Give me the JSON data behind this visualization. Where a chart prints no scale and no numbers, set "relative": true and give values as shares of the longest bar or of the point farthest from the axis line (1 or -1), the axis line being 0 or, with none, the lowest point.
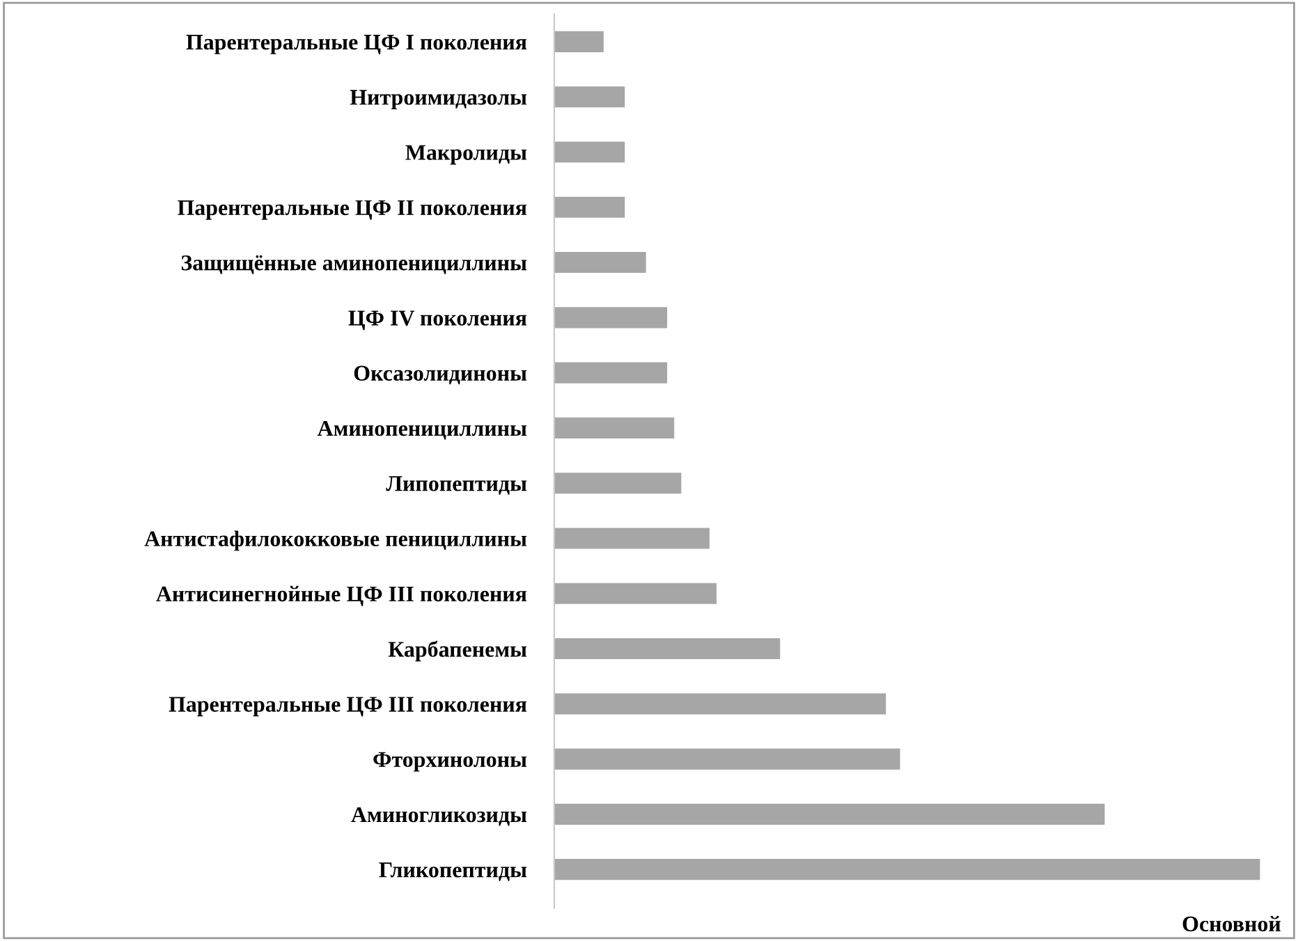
{
  "chart_data": {
    "type": "bar",
    "orientation": "horizontal",
    "relative": true,
    "categories": [
      "Парентеральные ЦФ I поколения",
      "Нитроимидазолы",
      "Макролиды",
      "Парентеральные ЦФ II поколения",
      "Защищённые аминопенициллины",
      "ЦФ IV поколения",
      "Оксазолидиноны",
      "Аминопенициллины",
      "Липопептиды",
      "Антистафилококковые пенициллины",
      "Антисинегнойные ЦФ III поколения",
      "Карбапенемы",
      "Парентеральные ЦФ III поколения",
      "Фторхинолоны",
      "Аминогликозиды",
      "Гликопептиды"
    ],
    "values": [
      0.07,
      0.1,
      0.1,
      0.1,
      0.13,
      0.16,
      0.16,
      0.17,
      0.18,
      0.22,
      0.23,
      0.32,
      0.47,
      0.49,
      0.78,
      1
    ],
    "color": "#a6a6a6",
    "xlabel": "Основной",
    "grid": false,
    "legend": false
  }
}
